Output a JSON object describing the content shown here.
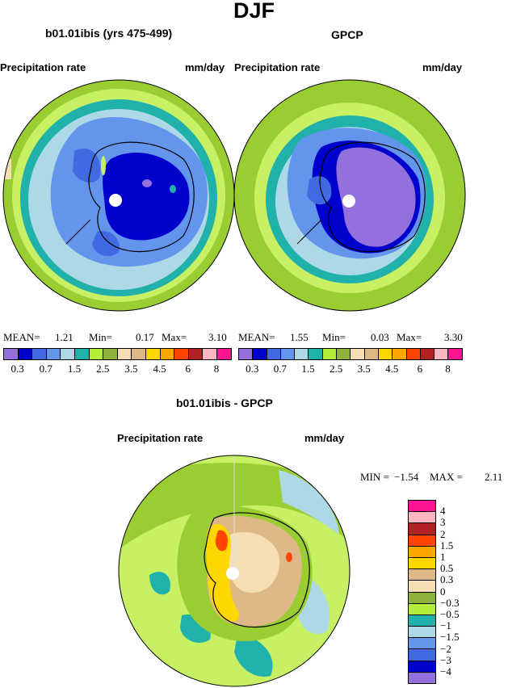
{
  "title": "DJF",
  "panels": [
    {
      "subtitle": "b01.01ibis (yrs 475-499)",
      "var_label": "Precipitation rate",
      "units_label": "mm/day",
      "stats": {
        "mean_label": "MEAN=",
        "mean": "1.21",
        "min_label": "Min=",
        "min": "0.17",
        "max_label": "Max=",
        "max": "3.10"
      }
    },
    {
      "subtitle": "GPCP",
      "var_label": "Precipitation rate",
      "units_label": "mm/day",
      "stats": {
        "mean_label": "MEAN=",
        "mean": "1.55",
        "min_label": "Min=",
        "min": "0.03",
        "max_label": "Max=",
        "max": "3.30"
      }
    },
    {
      "subtitle": "b01.01ibis - GPCP",
      "var_label": "Precipitation rate",
      "units_label": "mm/day",
      "stats": {
        "min_label": "MIN =",
        "min": "−1.54",
        "max_label": "MAX =",
        "max": "2.11"
      }
    }
  ],
  "colorbar_top": {
    "colors": [
      "#9370db",
      "#0000cd",
      "#4169e1",
      "#6495ed",
      "#add8e6",
      "#20b2aa",
      "#b3ee3a",
      "#8db33a",
      "#f5deb3",
      "#deb887",
      "#ffd700",
      "#ffa500",
      "#ff4500",
      "#b22222",
      "#ffb6c1",
      "#ff1493"
    ],
    "labels": [
      "0.3",
      "0.7",
      "1.5",
      "2.5",
      "3.5",
      "4.5",
      "6",
      "8"
    ]
  },
  "colorbar_diff": {
    "colors": [
      "#9370db",
      "#0000cd",
      "#4169e1",
      "#6495ed",
      "#add8e6",
      "#20b2aa",
      "#b3ee3a",
      "#8db33a",
      "#f5deb3",
      "#deb887",
      "#ffd700",
      "#ffa500",
      "#ff4500",
      "#b22222",
      "#ffb6c1",
      "#ff1493"
    ],
    "labels": [
      "−4",
      "−3",
      "−2",
      "−1.5",
      "−1",
      "−0.5",
      "−0.3",
      "0",
      "0.3",
      "0.5",
      "1",
      "1.5",
      "2",
      "3",
      "4"
    ]
  },
  "map_colors": {
    "green": "#9acd32",
    "lightgreen": "#c8f064",
    "teal": "#20b2aa",
    "lightblue": "#add8e6",
    "cornflower": "#6495ed",
    "royal": "#4169e1",
    "navy": "#0000cd",
    "purple": "#9370db",
    "tan": "#deb887",
    "wheat": "#f5deb3",
    "gold": "#ffd700",
    "orange": "#ffa500",
    "red": "#ff4500",
    "olive": "#8db33a"
  }
}
